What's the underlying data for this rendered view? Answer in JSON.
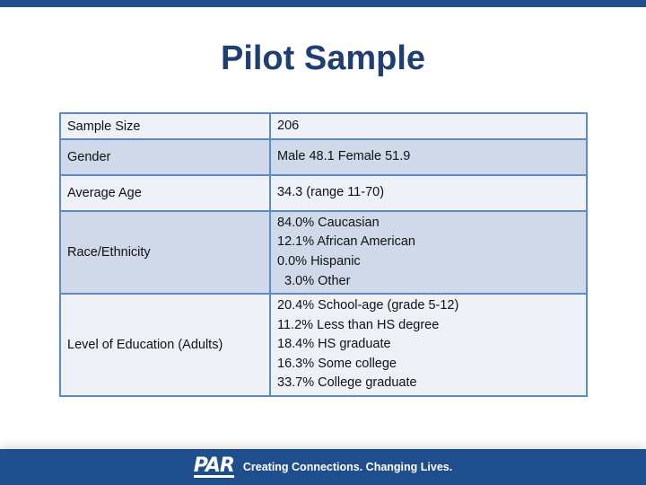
{
  "title": "Pilot Sample",
  "table": {
    "rows": [
      {
        "label": "Sample Size",
        "lines": [
          "206"
        ]
      },
      {
        "label": "Gender",
        "lines": [
          "Male 48.1 Female 51.9"
        ]
      },
      {
        "label": "Average Age",
        "lines": [
          "34.3 (range 11-70)"
        ]
      },
      {
        "label": "Race/Ethnicity",
        "lines": [
          "84.0% Caucasian",
          "12.1% African American",
          "0.0% Hispanic",
          "  3.0% Other"
        ]
      },
      {
        "label": "Level of Education (Adults)",
        "lines": [
          "20.4% School-age (grade 5-12)",
          "11.2% Less than HS degree",
          "18.4% HS graduate",
          "16.3% Some college",
          "33.7% College graduate"
        ]
      }
    ]
  },
  "footer": {
    "logo": "PAR",
    "tagline": "Creating Connections. Changing Lives."
  },
  "colors": {
    "brand": "#1f4e8c",
    "title": "#1f3f73",
    "table_border": "#5b8bc6",
    "row_light": "#eef2f8",
    "row_dark": "#d0d9e9"
  }
}
